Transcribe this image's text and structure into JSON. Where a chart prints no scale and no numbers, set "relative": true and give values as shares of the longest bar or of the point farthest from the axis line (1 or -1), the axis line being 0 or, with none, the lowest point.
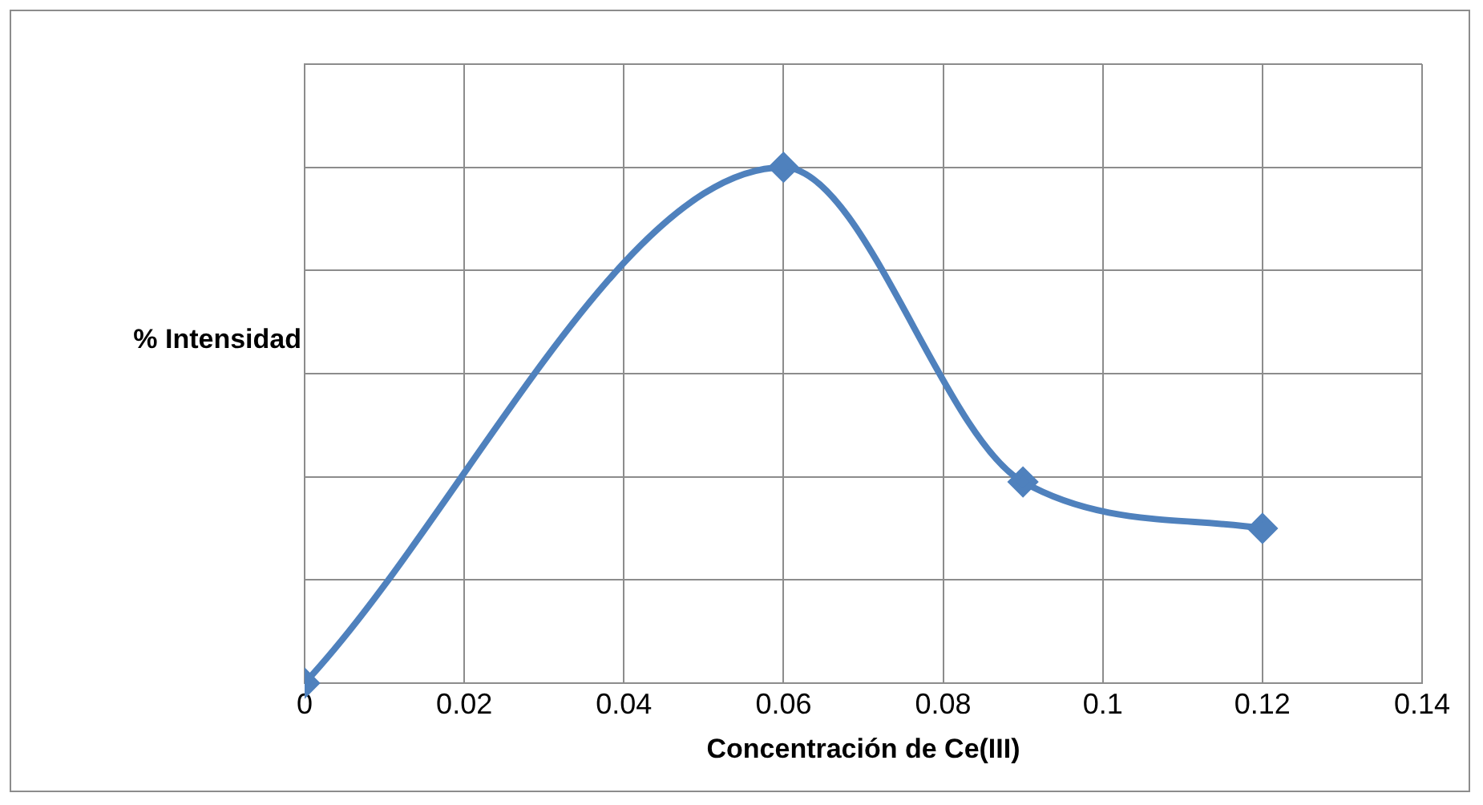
{
  "chart_data": {
    "type": "line",
    "xlabel": "Concentración de Ce(III)",
    "ylabel": "% Intensidad",
    "relative": true,
    "x": [
      0,
      0.06,
      0.09,
      0.12
    ],
    "series": [
      {
        "color": "#4f81bd",
        "values": [
          0,
          1,
          0.39,
          0.3
        ]
      }
    ],
    "xlim": [
      0,
      0.14
    ],
    "xticks": [
      0,
      0.02,
      0.04,
      0.06,
      0.08,
      0.1,
      0.12,
      0.14
    ],
    "grid": true,
    "legend": false,
    "marker": "diamond",
    "line_style": "solid"
  }
}
